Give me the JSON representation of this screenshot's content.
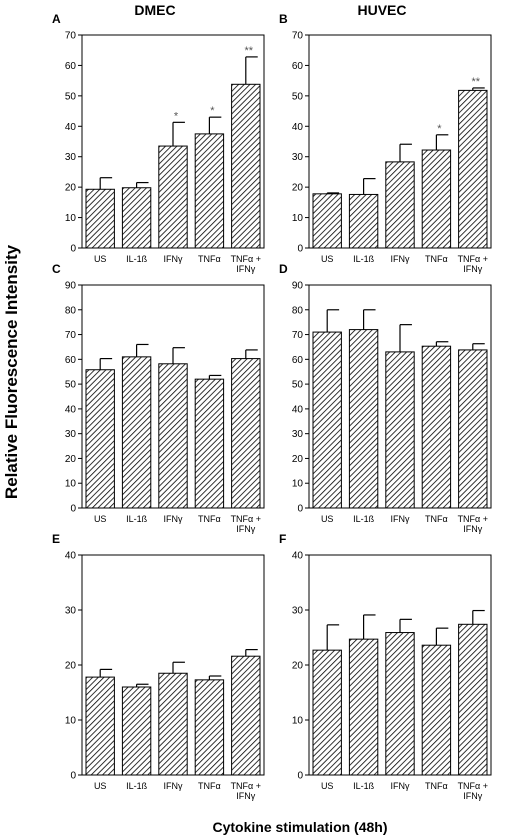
{
  "figure": {
    "col_titles": [
      "DMEC",
      "HUVEC"
    ],
    "ylabel": "Relative Fluorescence Intensity",
    "xlabel": "Cytokine stimulation (48h)"
  },
  "chart_data": [
    {
      "type": "bar",
      "panel": "A",
      "categories": [
        [
          "US"
        ],
        [
          "IL-1ß"
        ],
        [
          "IFNγ"
        ],
        [
          "TNFα"
        ],
        [
          "TNFα +",
          "IFNγ"
        ]
      ],
      "values": [
        19.3,
        19.8,
        33.5,
        37.5,
        53.8
      ],
      "errors": [
        3.8,
        1.7,
        7.8,
        5.5,
        9.0
      ],
      "annotations": [
        "",
        "",
        "*",
        "*",
        "**"
      ],
      "ylim": [
        0,
        70
      ],
      "yticks": [
        0,
        10,
        20,
        30,
        40,
        50,
        60,
        70
      ]
    },
    {
      "type": "bar",
      "panel": "B",
      "categories": [
        [
          "US"
        ],
        [
          "IL-1ß"
        ],
        [
          "IFNγ"
        ],
        [
          "TNFα"
        ],
        [
          "TNFα +",
          "IFNγ"
        ]
      ],
      "values": [
        17.8,
        17.6,
        28.3,
        32.2,
        51.8
      ],
      "errors": [
        0.3,
        5.2,
        5.8,
        5.0,
        0.8
      ],
      "annotations": [
        "",
        "",
        "",
        "*",
        "**"
      ],
      "ylim": [
        0,
        70
      ],
      "yticks": [
        0,
        10,
        20,
        30,
        40,
        50,
        60,
        70
      ]
    },
    {
      "type": "bar",
      "panel": "C",
      "categories": [
        [
          "US"
        ],
        [
          "IL-1ß"
        ],
        [
          "IFNγ"
        ],
        [
          "TNFα"
        ],
        [
          "TNFα +",
          "IFNγ"
        ]
      ],
      "values": [
        55.8,
        61.0,
        58.2,
        52.0,
        60.3
      ],
      "errors": [
        4.5,
        5.0,
        6.5,
        1.5,
        3.5
      ],
      "annotations": [
        "",
        "",
        "",
        "",
        ""
      ],
      "ylim": [
        0,
        90
      ],
      "yticks": [
        0,
        10,
        20,
        30,
        40,
        50,
        60,
        70,
        80,
        90
      ]
    },
    {
      "type": "bar",
      "panel": "D",
      "categories": [
        [
          "US"
        ],
        [
          "IL-1ß"
        ],
        [
          "IFNγ"
        ],
        [
          "TNFα"
        ],
        [
          "TNFα +",
          "IFNγ"
        ]
      ],
      "values": [
        71.0,
        72.0,
        63.0,
        65.3,
        63.8
      ],
      "errors": [
        9.0,
        8.0,
        11.0,
        1.8,
        2.5
      ],
      "annotations": [
        "",
        "",
        "",
        "",
        ""
      ],
      "ylim": [
        0,
        90
      ],
      "yticks": [
        0,
        10,
        20,
        30,
        40,
        50,
        60,
        70,
        80,
        90
      ]
    },
    {
      "type": "bar",
      "panel": "E",
      "categories": [
        [
          "US"
        ],
        [
          "IL-1ß"
        ],
        [
          "IFNγ"
        ],
        [
          "TNFα"
        ],
        [
          "TNFα +",
          "IFNγ"
        ]
      ],
      "values": [
        17.8,
        16.0,
        18.5,
        17.3,
        21.6
      ],
      "errors": [
        1.4,
        0.5,
        2.0,
        0.7,
        1.2
      ],
      "annotations": [
        "",
        "",
        "",
        "",
        ""
      ],
      "ylim": [
        0,
        40
      ],
      "yticks": [
        0,
        10,
        20,
        30,
        40
      ]
    },
    {
      "type": "bar",
      "panel": "F",
      "categories": [
        [
          "US"
        ],
        [
          "IL-1ß"
        ],
        [
          "IFNγ"
        ],
        [
          "TNFα"
        ],
        [
          "TNFα +",
          "IFNγ"
        ]
      ],
      "values": [
        22.7,
        24.7,
        25.9,
        23.6,
        27.4
      ],
      "errors": [
        4.6,
        4.4,
        2.4,
        3.1,
        2.5
      ],
      "annotations": [
        "",
        "",
        "",
        "",
        ""
      ],
      "ylim": [
        0,
        40
      ],
      "yticks": [
        0,
        10,
        20,
        30,
        40
      ]
    }
  ]
}
